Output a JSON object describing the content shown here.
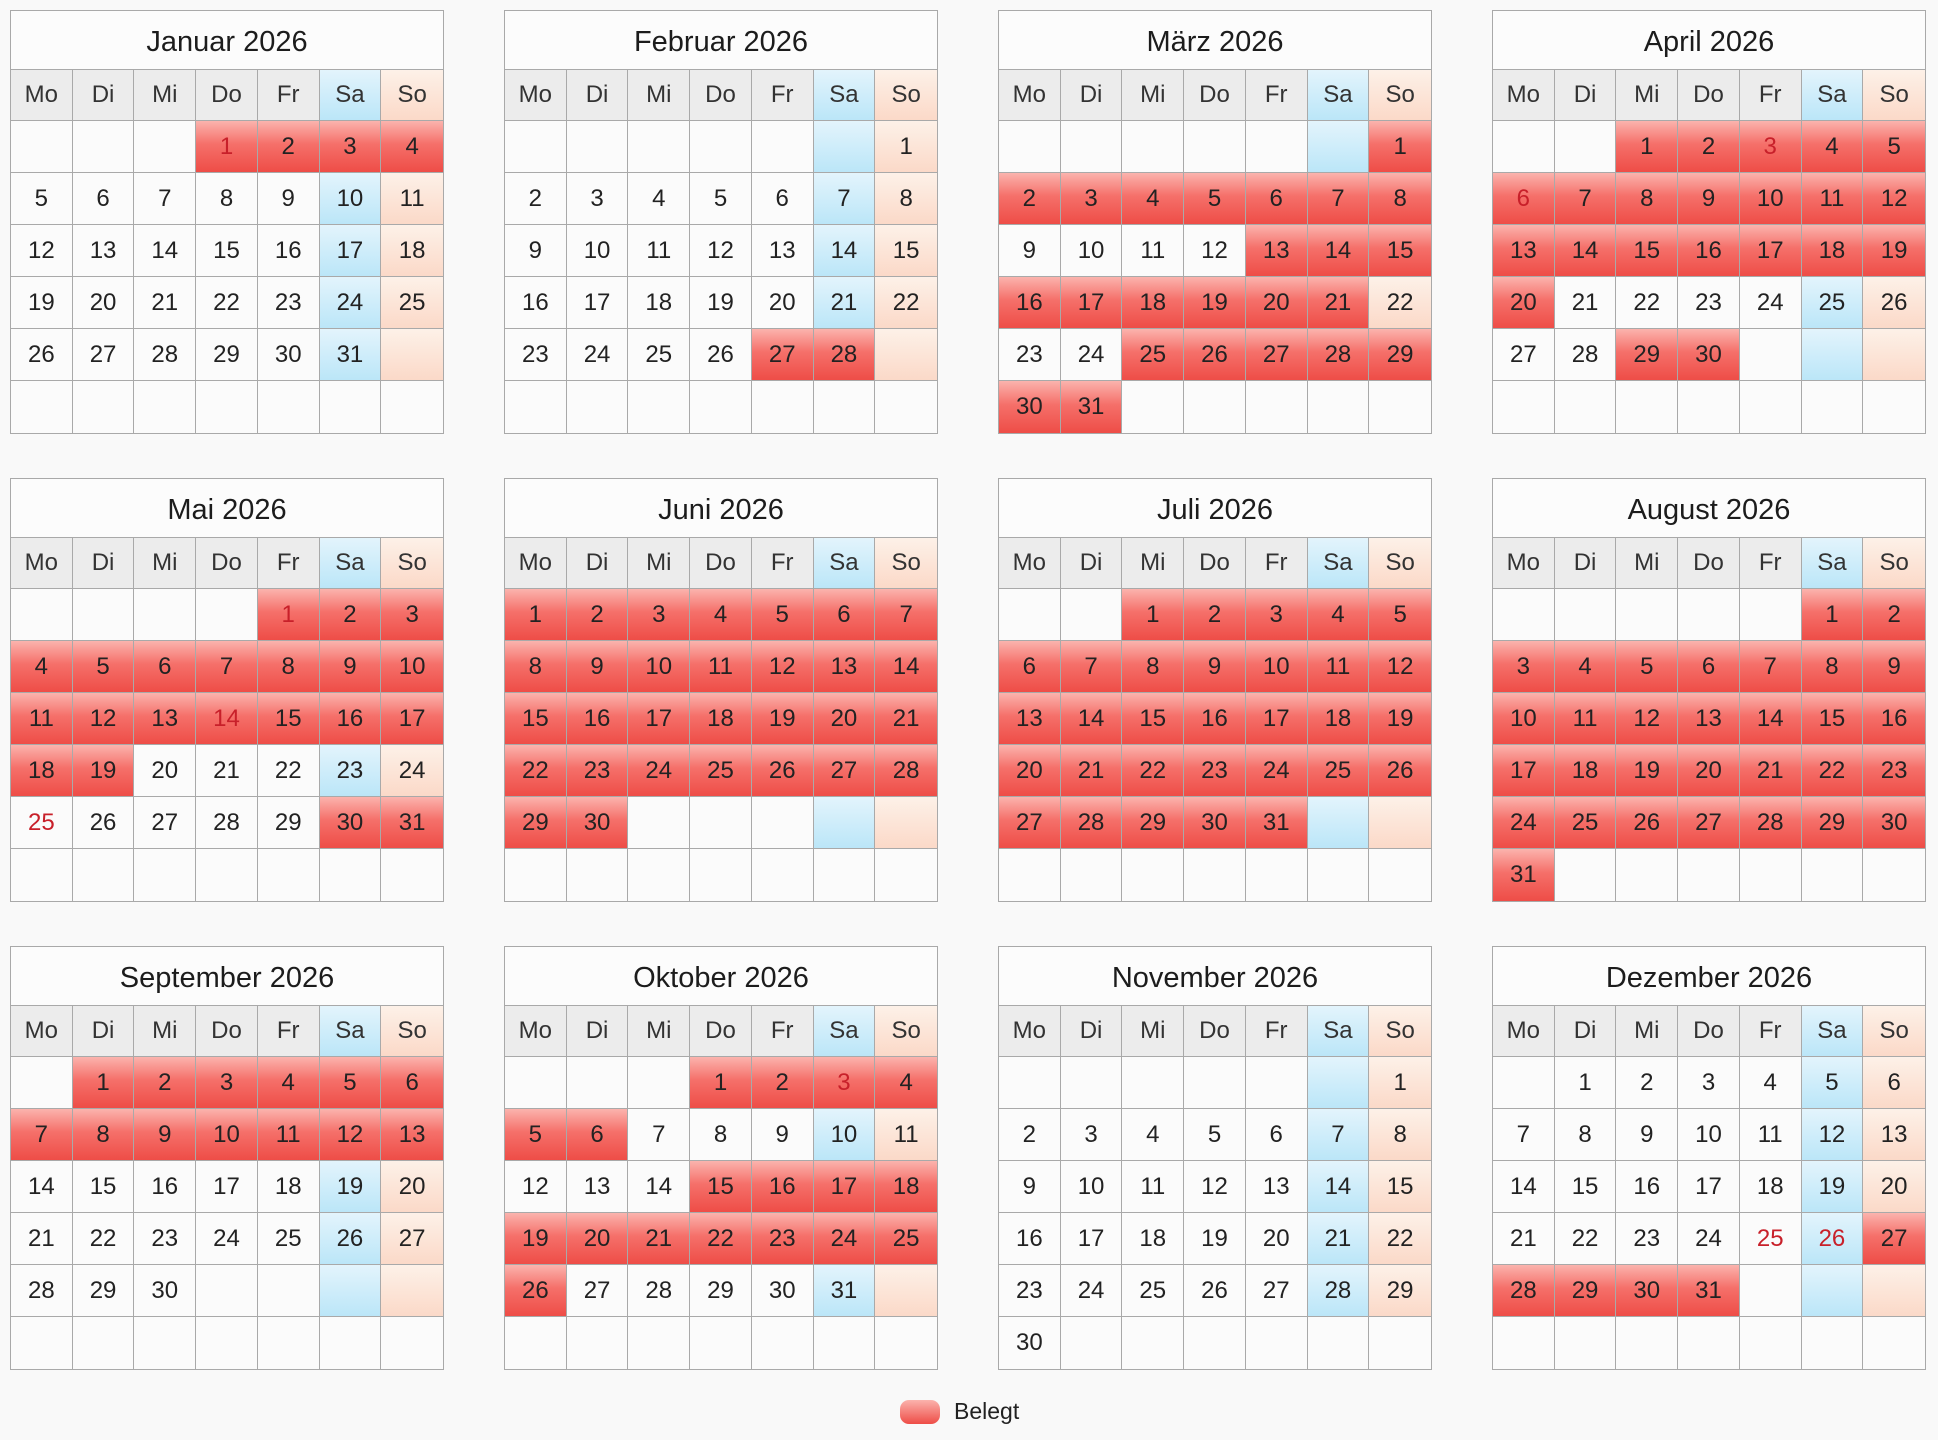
{
  "weekdays": [
    "Mo",
    "Di",
    "Mi",
    "Do",
    "Fr",
    "Sa",
    "So"
  ],
  "legend": {
    "label": "Belegt",
    "color": "#f0504a"
  },
  "colors": {
    "booked": "#ee4d47",
    "saturday": "#c4e9f8",
    "sunday": "#fbdccc",
    "holiday_text": "#c8202a"
  },
  "months": [
    {
      "title": "Januar 2026",
      "offset": 3,
      "days": 31,
      "booked": [
        1,
        2,
        3,
        4
      ],
      "holidays": [
        1
      ]
    },
    {
      "title": "Februar 2026",
      "offset": 6,
      "days": 28,
      "booked": [
        27,
        28
      ],
      "holidays": []
    },
    {
      "title": "März 2026",
      "offset": 6,
      "days": 31,
      "booked": [
        1,
        2,
        3,
        4,
        5,
        6,
        7,
        8,
        13,
        14,
        15,
        16,
        17,
        18,
        19,
        20,
        21,
        25,
        26,
        27,
        28,
        29,
        30,
        31
      ],
      "holidays": []
    },
    {
      "title": "April 2026",
      "offset": 2,
      "days": 30,
      "booked": [
        1,
        2,
        3,
        4,
        5,
        6,
        7,
        8,
        9,
        10,
        11,
        12,
        13,
        14,
        15,
        16,
        17,
        18,
        19,
        20,
        29,
        30
      ],
      "holidays": [
        3,
        6
      ]
    },
    {
      "title": "Mai 2026",
      "offset": 4,
      "days": 31,
      "booked": [
        1,
        2,
        3,
        4,
        5,
        6,
        7,
        8,
        9,
        10,
        11,
        12,
        13,
        14,
        15,
        16,
        17,
        18,
        19,
        30,
        31
      ],
      "holidays": [
        1,
        14,
        25
      ]
    },
    {
      "title": "Juni 2026",
      "offset": 0,
      "days": 30,
      "booked": [
        1,
        2,
        3,
        4,
        5,
        6,
        7,
        8,
        9,
        10,
        11,
        12,
        13,
        14,
        15,
        16,
        17,
        18,
        19,
        20,
        21,
        22,
        23,
        24,
        25,
        26,
        27,
        28,
        29,
        30
      ],
      "holidays": []
    },
    {
      "title": "Juli 2026",
      "offset": 2,
      "days": 31,
      "booked": [
        1,
        2,
        3,
        4,
        5,
        6,
        7,
        8,
        9,
        10,
        11,
        12,
        13,
        14,
        15,
        16,
        17,
        18,
        19,
        20,
        21,
        22,
        23,
        24,
        25,
        26,
        27,
        28,
        29,
        30,
        31
      ],
      "holidays": []
    },
    {
      "title": "August 2026",
      "offset": 5,
      "days": 31,
      "booked": [
        1,
        2,
        3,
        4,
        5,
        6,
        7,
        8,
        9,
        10,
        11,
        12,
        13,
        14,
        15,
        16,
        17,
        18,
        19,
        20,
        21,
        22,
        23,
        24,
        25,
        26,
        27,
        28,
        29,
        30,
        31
      ],
      "holidays": []
    },
    {
      "title": "September 2026",
      "offset": 1,
      "days": 30,
      "booked": [
        1,
        2,
        3,
        4,
        5,
        6,
        7,
        8,
        9,
        10,
        11,
        12,
        13
      ],
      "holidays": []
    },
    {
      "title": "Oktober 2026",
      "offset": 3,
      "days": 31,
      "booked": [
        1,
        2,
        3,
        4,
        5,
        6,
        15,
        16,
        17,
        18,
        19,
        20,
        21,
        22,
        23,
        24,
        25,
        26
      ],
      "holidays": [
        3
      ]
    },
    {
      "title": "November 2026",
      "offset": 6,
      "days": 30,
      "booked": [],
      "holidays": []
    },
    {
      "title": "Dezember 2026",
      "offset": 1,
      "days": 31,
      "booked": [
        27,
        28,
        29,
        30,
        31
      ],
      "holidays": [
        25,
        26
      ]
    }
  ]
}
